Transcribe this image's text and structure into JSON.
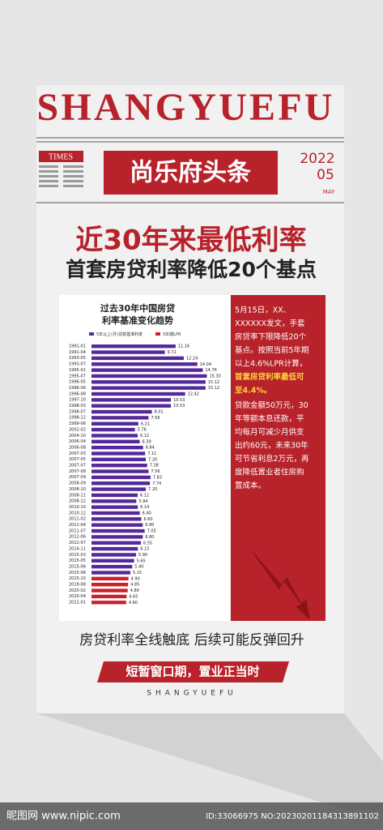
{
  "header": {
    "brand": "SHANGYUEFU",
    "badge": "TIMES",
    "title": "尚乐府头条",
    "year": "2022",
    "month": "05",
    "month_name": "MAY"
  },
  "headline": {
    "main": "近30年来最低利率",
    "sub": "首套房贷利率降低20个基点"
  },
  "chart_data": {
    "type": "hbar",
    "title_lines": [
      "过去30年中国房贷",
      "利率基准变化趋势"
    ],
    "categories": [
      "1991-01",
      "1991-04",
      "1993-05",
      "1993-07",
      "1995-01",
      "1995-07",
      "1996-05",
      "1996-06",
      "1996-08",
      "1997-10",
      "1998-03",
      "1998-07",
      "1998-12",
      "1999-06",
      "2002-02",
      "2004-10",
      "2006-04",
      "2006-08",
      "2007-03",
      "2007-05",
      "2007-07",
      "2007-08",
      "2007-09",
      "2008-09",
      "2008-10",
      "2008-11",
      "2008-12",
      "2010-10",
      "2010-12",
      "2011-02",
      "2011-04",
      "2011-07",
      "2012-06",
      "2012-07",
      "2014-11",
      "2015-03",
      "2015-05",
      "2015-06",
      "2015-08",
      "2015-10",
      "2019-08",
      "2020-02",
      "2020-04",
      "2022-01"
    ],
    "series": [
      {
        "name": "5年以上(月)贷款基准利率",
        "color": "#55299a",
        "values": [
          11.16,
          9.72,
          12.24,
          14.04,
          14.76,
          15.3,
          15.12,
          15.12,
          12.42,
          10.53,
          10.53,
          8.01,
          7.56,
          6.21,
          5.76,
          6.12,
          6.39,
          6.84,
          7.11,
          7.2,
          7.38,
          7.56,
          7.83,
          7.74,
          7.2,
          6.12,
          5.94,
          6.14,
          6.4,
          6.6,
          6.8,
          7.05,
          6.8,
          6.55,
          6.15,
          5.9,
          5.65,
          5.4,
          5.15,
          null,
          null,
          null,
          null,
          null
        ],
        "value_labels": [
          "11.16",
          "9.72",
          "12.24",
          "14.04",
          "14.76",
          "15.30",
          "15.12",
          "15.12",
          "12.42",
          "10.53",
          "10.53",
          "8.01",
          "7.56",
          "6.21",
          "5.76",
          "6.12",
          "6.39",
          "6.84",
          "7.11",
          "7.20",
          "7.38",
          "7.56",
          "7.83",
          "7.74",
          "7.20",
          "6.12",
          "5.94",
          "6.14",
          "6.40",
          "6.60",
          "6.80",
          "7.05",
          "6.80",
          "6.55",
          "6.15",
          "5.90",
          "5.65",
          "5.40",
          "5.15",
          null,
          null,
          null,
          null,
          null
        ]
      },
      {
        "name": "5年期LPR",
        "color": "#c8232c",
        "values": [
          null,
          null,
          null,
          null,
          null,
          null,
          null,
          null,
          null,
          null,
          null,
          null,
          null,
          null,
          null,
          null,
          null,
          null,
          null,
          null,
          null,
          null,
          null,
          null,
          null,
          null,
          null,
          null,
          null,
          null,
          null,
          null,
          null,
          null,
          null,
          null,
          null,
          null,
          null,
          4.9,
          4.85,
          4.8,
          4.65,
          4.6
        ],
        "value_labels": [
          null,
          null,
          null,
          null,
          null,
          null,
          null,
          null,
          null,
          null,
          null,
          null,
          null,
          null,
          null,
          null,
          null,
          null,
          null,
          null,
          null,
          null,
          null,
          null,
          null,
          null,
          null,
          null,
          null,
          null,
          null,
          null,
          null,
          null,
          null,
          null,
          null,
          null,
          null,
          "4.90",
          "4.85",
          "4.80",
          "4.65",
          "4.60"
        ]
      }
    ],
    "xlim": [
      0,
      16
    ]
  },
  "note": {
    "lines": [
      "5月15日，XX、",
      "XXXXXX发文，手套",
      "房贷率下限降低20个",
      "基点。按照当前5年期",
      "以上4.6%LPR计算，"
    ],
    "highlight": [
      "首套房贷利率最低可",
      "至4.4%。"
    ],
    "lines2": [
      "贷款金额50万元，30",
      "年等额本息还款，平",
      "均每月可减少月供支",
      "出约60元，未来30年",
      "可节省利息2万元，再",
      "度降低置业者住房购",
      "置成本。"
    ]
  },
  "footer": {
    "slogan": "房贷利率全线触底  后续可能反弹回升",
    "banner": "短暂窗口期，置业正当时",
    "brand": "SHANGYUEFU"
  },
  "watermark": {
    "site": "昵图网 www.nipic.com",
    "id": "ID:33066975 NO:20230201184313891102"
  }
}
